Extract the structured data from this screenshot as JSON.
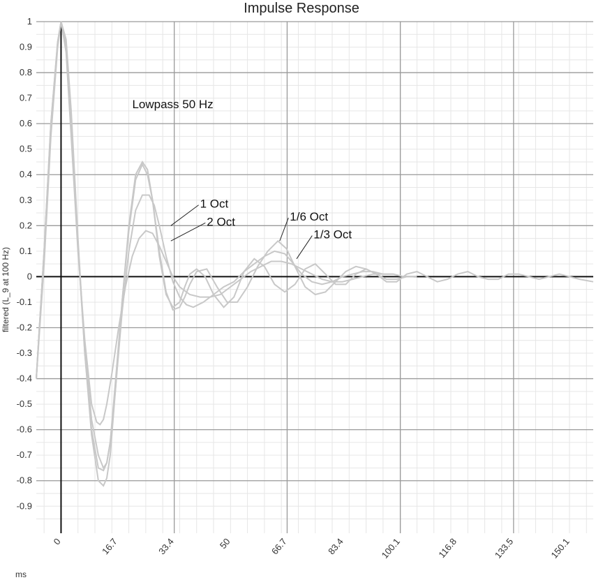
{
  "chart_data": {
    "type": "line",
    "title": "Impulse Response",
    "xlabel": "ms",
    "ylabel": "filtered (L_9 at 100 Hz)",
    "xlim": [
      -7.3,
      157
    ],
    "ylim": [
      -1.0,
      1.0
    ],
    "x_ticks": [
      "0",
      "16.7",
      "33.4",
      "50",
      "66.7",
      "83.4",
      "100.1",
      "116.8",
      "133.5",
      "150.1"
    ],
    "x_tick_values": [
      0,
      16.7,
      33.4,
      50,
      66.7,
      83.4,
      100.1,
      116.8,
      133.5,
      150.1
    ],
    "y_ticks": [
      "1",
      "0.9",
      "0.8",
      "0.7",
      "0.6",
      "0.5",
      "0.4",
      "0.3",
      "0.2",
      "0.1",
      "0",
      "-0.1",
      "-0.2",
      "-0.3",
      "-0.4",
      "-0.5",
      "-0.6",
      "-0.7",
      "-0.8",
      "-0.9"
    ],
    "y_tick_values": [
      1,
      0.9,
      0.8,
      0.7,
      0.6,
      0.5,
      0.4,
      0.3,
      0.2,
      0.1,
      0,
      -0.1,
      -0.2,
      -0.3,
      -0.4,
      -0.5,
      -0.6,
      -0.7,
      -0.8,
      -0.9
    ],
    "grid": true,
    "series_color": "#c8c8c8",
    "series": [
      {
        "x": [
          -7.3,
          -5,
          -3,
          -1,
          0,
          1.5,
          3,
          5,
          7,
          9,
          11,
          12.5,
          13.5,
          14.5,
          16,
          18,
          20,
          22,
          24,
          25.5,
          27,
          29,
          31,
          33,
          35,
          36.5,
          38,
          40,
          42.5,
          45,
          48,
          51,
          54,
          57,
          60,
          63,
          66,
          69,
          72,
          75,
          78,
          81,
          84,
          87,
          90,
          93,
          96,
          99,
          102,
          105,
          108,
          111,
          114,
          117,
          120,
          123,
          126,
          129,
          132,
          135,
          138,
          141,
          144,
          147,
          150,
          153,
          157
        ],
        "y": [
          -0.4,
          0.1,
          0.6,
          0.92,
          1.0,
          0.93,
          0.65,
          0.15,
          -0.3,
          -0.62,
          -0.8,
          -0.82,
          -0.79,
          -0.7,
          -0.45,
          -0.1,
          0.2,
          0.4,
          0.45,
          0.42,
          0.3,
          0.08,
          -0.07,
          -0.12,
          -0.1,
          -0.04,
          0.01,
          0.03,
          0.0,
          -0.07,
          -0.12,
          -0.08,
          0.02,
          0.07,
          0.04,
          -0.03,
          -0.06,
          -0.03,
          0.03,
          0.05,
          0.01,
          -0.03,
          -0.03,
          0.01,
          0.03,
          0.01,
          -0.02,
          -0.02,
          0.01,
          0.02,
          0.0,
          -0.02,
          -0.01,
          0.01,
          0.02,
          0.0,
          -0.01,
          -0.01,
          0.01,
          0.01,
          0.0,
          -0.01,
          0.0,
          0.01,
          0.0,
          -0.01,
          -0.02
        ]
      },
      {
        "x": [
          -7.3,
          -5,
          -3,
          -1,
          0,
          1.5,
          3,
          5,
          7,
          9,
          11,
          12.5,
          13.5,
          14.5,
          16,
          18,
          20,
          22,
          24,
          25.5,
          27,
          29,
          31,
          33,
          35,
          36.5,
          38,
          40,
          43,
          46,
          49,
          52,
          55,
          58,
          61,
          64,
          66.5,
          69,
          72,
          75,
          78,
          81,
          84,
          87,
          90,
          93,
          96,
          99,
          102,
          105
        ],
        "y": [
          -0.4,
          0.1,
          0.6,
          0.92,
          1.0,
          0.92,
          0.62,
          0.12,
          -0.3,
          -0.6,
          -0.75,
          -0.76,
          -0.73,
          -0.65,
          -0.42,
          -0.1,
          0.18,
          0.38,
          0.44,
          0.4,
          0.3,
          0.1,
          -0.06,
          -0.13,
          -0.12,
          -0.08,
          -0.03,
          0.02,
          0.03,
          -0.04,
          -0.1,
          -0.1,
          -0.04,
          0.04,
          0.1,
          0.14,
          0.11,
          0.04,
          -0.04,
          -0.07,
          -0.06,
          -0.02,
          0.02,
          0.04,
          0.03,
          0.01,
          -0.01,
          -0.01,
          0.0,
          0.0
        ]
      },
      {
        "x": [
          -7.3,
          -5,
          -3,
          -1,
          0,
          1.5,
          3,
          5,
          7,
          9,
          11,
          12.5,
          13.5,
          14.5,
          16,
          18,
          20,
          22,
          24,
          26,
          27.5,
          29,
          31,
          33,
          35,
          37,
          39,
          42,
          45,
          48,
          51,
          54,
          57,
          60,
          63,
          66,
          68,
          71,
          74,
          77,
          80,
          83,
          86,
          89,
          92,
          95,
          98,
          101,
          104
        ],
        "y": [
          -0.4,
          0.1,
          0.58,
          0.91,
          1.0,
          0.9,
          0.6,
          0.12,
          -0.28,
          -0.56,
          -0.7,
          -0.75,
          -0.73,
          -0.65,
          -0.45,
          -0.14,
          0.1,
          0.26,
          0.32,
          0.32,
          0.28,
          0.2,
          0.08,
          -0.02,
          -0.08,
          -0.11,
          -0.12,
          -0.1,
          -0.07,
          -0.04,
          -0.02,
          0.02,
          0.05,
          0.08,
          0.1,
          0.09,
          0.06,
          0.01,
          -0.02,
          -0.03,
          -0.02,
          0.0,
          0.01,
          0.02,
          0.02,
          0.01,
          0.01,
          0.0,
          0.0
        ]
      },
      {
        "x": [
          -7.3,
          -5,
          -3,
          -1,
          0,
          1.5,
          3,
          5,
          7,
          9,
          10.5,
          11.5,
          12.5,
          13.5,
          15,
          17,
          19,
          21,
          23,
          25,
          27,
          29,
          31,
          33,
          35,
          38,
          41,
          44,
          47,
          50,
          53,
          56,
          59,
          62,
          65,
          68,
          71,
          74,
          77,
          80,
          83,
          86,
          89,
          92,
          95,
          98,
          101,
          104
        ],
        "y": [
          -0.4,
          0.05,
          0.55,
          0.9,
          1.0,
          0.88,
          0.55,
          0.1,
          -0.25,
          -0.5,
          -0.57,
          -0.58,
          -0.56,
          -0.5,
          -0.38,
          -0.2,
          -0.04,
          0.08,
          0.15,
          0.18,
          0.17,
          0.12,
          0.06,
          0.0,
          -0.04,
          -0.07,
          -0.08,
          -0.08,
          -0.07,
          -0.04,
          -0.01,
          0.02,
          0.04,
          0.06,
          0.06,
          0.05,
          0.03,
          0.01,
          -0.01,
          -0.02,
          -0.02,
          -0.01,
          0.0,
          0.01,
          0.01,
          0.01,
          0.0,
          0.0
        ]
      }
    ],
    "annotations": [
      {
        "text": "Lowpass 50 Hz",
        "x": 21,
        "y": 0.66
      },
      {
        "text": "1 Oct",
        "x": 41,
        "y": 0.27,
        "ax": 32.4,
        "ay": 0.2
      },
      {
        "text": "2 Oct",
        "x": 43,
        "y": 0.2,
        "ax": 32.4,
        "ay": 0.14
      },
      {
        "text": "1/6 Oct",
        "x": 67.5,
        "y": 0.22,
        "ax": 64.5,
        "ay": 0.14
      },
      {
        "text": "1/3 Oct",
        "x": 74.5,
        "y": 0.15,
        "ax": 69.5,
        "ay": 0.07
      }
    ]
  }
}
